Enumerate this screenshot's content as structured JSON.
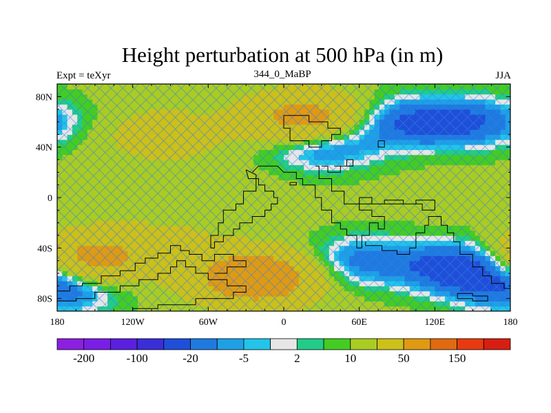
{
  "chart_data": {
    "type": "heatmap",
    "title": "Height perturbation at 500 hPa (in m)",
    "left_string": "Expt = teXyr",
    "center_string": "344_0_MaBP",
    "right_string": "JJA",
    "x_ticks": [
      "180",
      "120W",
      "60W",
      "0",
      "60E",
      "120E",
      "180"
    ],
    "x_tick_values": [
      -180,
      -120,
      -60,
      0,
      60,
      120,
      180
    ],
    "y_ticks": [
      "80N",
      "40N",
      "0",
      "40S",
      "80S"
    ],
    "y_tick_values": [
      80,
      40,
      0,
      -40,
      -80
    ],
    "xlim": [
      -180,
      180
    ],
    "ylim": [
      -90,
      90
    ],
    "colorbar": {
      "colors": [
        "#8c1fe0",
        "#7a1ee6",
        "#5b1fe0",
        "#3a2ed8",
        "#1f4fd8",
        "#1f7ae0",
        "#1ea0e6",
        "#22c4e8",
        "#e6e6e6",
        "#22cc88",
        "#44cc22",
        "#aacc22",
        "#ccc019",
        "#e09a12",
        "#e06a10",
        "#e83a10",
        "#d81e10"
      ],
      "labels": [
        "-200",
        "-100",
        "-20",
        "-5",
        "2",
        "10",
        "50",
        "150"
      ],
      "label_boundaries": [
        1,
        3,
        5,
        7,
        9,
        11,
        13,
        15
      ]
    },
    "field_features": [
      {
        "lon": 18,
        "lat": 62,
        "value": 60
      },
      {
        "lon": -22,
        "lat": -63,
        "value": 80
      },
      {
        "lon": -152,
        "lat": -48,
        "value": 55
      },
      {
        "lon": -95,
        "lat": 50,
        "value": 20
      },
      {
        "lon": 30,
        "lat": 42,
        "value": -30
      },
      {
        "lon": 95,
        "lat": 60,
        "value": -30
      },
      {
        "lon": 150,
        "lat": 60,
        "value": -30
      },
      {
        "lon": 60,
        "lat": -50,
        "value": -25
      },
      {
        "lon": 140,
        "lat": -55,
        "value": -45
      },
      {
        "lon": -175,
        "lat": -72,
        "value": -30
      },
      {
        "lon": -90,
        "lat": -35,
        "value": 10
      },
      {
        "lon": -60,
        "lat": 5,
        "value": 5
      }
    ],
    "coastlines": [
      [
        [
          -30,
          22
        ],
        [
          -28,
          15
        ],
        [
          -20,
          15
        ],
        [
          -20,
          10
        ],
        [
          -15,
          10
        ],
        [
          -15,
          5
        ],
        [
          -8,
          5
        ],
        [
          -8,
          0
        ],
        [
          -5,
          0
        ],
        [
          -5,
          -5
        ],
        [
          -10,
          -5
        ],
        [
          -10,
          -10
        ],
        [
          -15,
          -10
        ],
        [
          -15,
          -15
        ],
        [
          -25,
          -15
        ],
        [
          -25,
          -20
        ],
        [
          -35,
          -20
        ],
        [
          -35,
          -25
        ],
        [
          -40,
          -25
        ],
        [
          -40,
          -30
        ],
        [
          -48,
          -30
        ],
        [
          -48,
          -35
        ],
        [
          -55,
          -35
        ],
        [
          -55,
          -40
        ],
        [
          -58,
          -40
        ],
        [
          -58,
          -30
        ],
        [
          -52,
          -30
        ],
        [
          -52,
          -20
        ],
        [
          -48,
          -20
        ],
        [
          -48,
          -10
        ],
        [
          -38,
          -10
        ],
        [
          -38,
          -5
        ],
        [
          -32,
          -5
        ],
        [
          -32,
          5
        ],
        [
          -22,
          5
        ],
        [
          -22,
          18
        ],
        [
          -30,
          22
        ]
      ],
      [
        [
          -25,
          20
        ],
        [
          -20,
          25
        ],
        [
          -5,
          25
        ],
        [
          0,
          20
        ],
        [
          10,
          20
        ],
        [
          10,
          15
        ],
        [
          15,
          15
        ],
        [
          15,
          10
        ],
        [
          25,
          10
        ],
        [
          25,
          0
        ],
        [
          30,
          0
        ],
        [
          30,
          -10
        ],
        [
          38,
          -10
        ],
        [
          38,
          -20
        ],
        [
          45,
          -20
        ],
        [
          45,
          -25
        ],
        [
          50,
          -25
        ],
        [
          50,
          -30
        ],
        [
          58,
          -30
        ],
        [
          58,
          -40
        ],
        [
          62,
          -40
        ],
        [
          62,
          -30
        ],
        [
          68,
          -30
        ],
        [
          68,
          -20
        ],
        [
          75,
          -20
        ],
        [
          75,
          -25
        ],
        [
          80,
          -25
        ],
        [
          80,
          -15
        ],
        [
          70,
          -15
        ],
        [
          70,
          -10
        ],
        [
          60,
          -10
        ],
        [
          60,
          -5
        ],
        [
          48,
          -5
        ],
        [
          48,
          5
        ],
        [
          38,
          5
        ],
        [
          38,
          15
        ],
        [
          28,
          15
        ],
        [
          28,
          25
        ],
        [
          25,
          25
        ]
      ],
      [
        [
          30,
          25
        ],
        [
          35,
          25
        ],
        [
          35,
          20
        ],
        [
          45,
          20
        ],
        [
          45,
          25
        ],
        [
          55,
          25
        ],
        [
          55,
          30
        ],
        [
          50,
          30
        ],
        [
          50,
          25
        ],
        [
          40,
          25
        ]
      ],
      [
        [
          5,
          12
        ],
        [
          10,
          12
        ],
        [
          10,
          10
        ],
        [
          5,
          10
        ],
        [
          5,
          12
        ]
      ],
      [
        [
          60,
          0
        ],
        [
          70,
          0
        ],
        [
          70,
          -5
        ],
        [
          80,
          -5
        ],
        [
          80,
          -2
        ],
        [
          95,
          -2
        ],
        [
          95,
          -5
        ],
        [
          105,
          -5
        ],
        [
          105,
          -2
        ],
        [
          120,
          -2
        ],
        [
          120,
          -10
        ],
        [
          110,
          -10
        ],
        [
          110,
          -5
        ],
        [
          60,
          -5
        ],
        [
          60,
          0
        ]
      ],
      [
        [
          0,
          65
        ],
        [
          20,
          65
        ],
        [
          20,
          60
        ],
        [
          35,
          60
        ],
        [
          35,
          55
        ],
        [
          45,
          55
        ],
        [
          45,
          50
        ],
        [
          38,
          50
        ],
        [
          38,
          45
        ],
        [
          30,
          45
        ],
        [
          30,
          40
        ],
        [
          20,
          40
        ],
        [
          20,
          45
        ],
        [
          5,
          45
        ],
        [
          5,
          55
        ],
        [
          0,
          55
        ],
        [
          0,
          65
        ]
      ],
      [
        [
          75,
          45
        ],
        [
          80,
          45
        ],
        [
          80,
          40
        ],
        [
          75,
          40
        ],
        [
          75,
          45
        ]
      ],
      [
        [
          -120,
          -90
        ],
        [
          -120,
          -88
        ],
        [
          -100,
          -88
        ],
        [
          -100,
          -85
        ],
        [
          -70,
          -85
        ],
        [
          -70,
          -80
        ],
        [
          -40,
          -80
        ],
        [
          -40,
          -75
        ],
        [
          -30,
          -75
        ],
        [
          -30,
          -70
        ],
        [
          -45,
          -70
        ],
        [
          -45,
          -65
        ],
        [
          -60,
          -65
        ],
        [
          -60,
          -60
        ],
        [
          -70,
          -60
        ],
        [
          -70,
          -55
        ],
        [
          -78,
          -55
        ],
        [
          -78,
          -50
        ],
        [
          -85,
          -50
        ],
        [
          -85,
          -55
        ],
        [
          -90,
          -55
        ],
        [
          -90,
          -60
        ],
        [
          -100,
          -60
        ],
        [
          -100,
          -65
        ],
        [
          -115,
          -65
        ],
        [
          -115,
          -70
        ],
        [
          -130,
          -70
        ],
        [
          -130,
          -75
        ],
        [
          -150,
          -75
        ],
        [
          -150,
          -80
        ],
        [
          -165,
          -80
        ],
        [
          -165,
          -82
        ],
        [
          -180,
          -82
        ]
      ],
      [
        [
          -180,
          -74
        ],
        [
          -170,
          -74
        ],
        [
          -170,
          -70
        ],
        [
          -160,
          -70
        ],
        [
          -160,
          -68
        ],
        [
          -145,
          -68
        ],
        [
          -145,
          -62
        ],
        [
          -130,
          -62
        ],
        [
          -130,
          -58
        ],
        [
          -118,
          -58
        ],
        [
          -118,
          -52
        ],
        [
          -110,
          -52
        ],
        [
          -110,
          -48
        ],
        [
          -100,
          -48
        ],
        [
          -100,
          -44
        ],
        [
          -90,
          -44
        ],
        [
          -90,
          -38
        ],
        [
          -82,
          -38
        ],
        [
          -82,
          -42
        ],
        [
          -75,
          -42
        ],
        [
          -75,
          -45
        ],
        [
          -65,
          -45
        ],
        [
          -65,
          -50
        ],
        [
          -55,
          -50
        ],
        [
          -55,
          -45
        ],
        [
          -40,
          -45
        ],
        [
          -40,
          -50
        ],
        [
          -30,
          -50
        ],
        [
          -30,
          -55
        ],
        [
          -45,
          -55
        ],
        [
          -45,
          -60
        ],
        [
          -55,
          -60
        ]
      ],
      [
        [
          120,
          -15
        ],
        [
          125,
          -15
        ],
        [
          125,
          -22
        ],
        [
          130,
          -22
        ],
        [
          130,
          -28
        ],
        [
          135,
          -28
        ],
        [
          135,
          -35
        ],
        [
          140,
          -35
        ],
        [
          140,
          -45
        ],
        [
          150,
          -45
        ],
        [
          150,
          -55
        ],
        [
          158,
          -55
        ],
        [
          158,
          -62
        ],
        [
          165,
          -62
        ],
        [
          165,
          -68
        ],
        [
          175,
          -68
        ],
        [
          175,
          -72
        ],
        [
          180,
          -72
        ]
      ],
      [
        [
          120,
          -15
        ],
        [
          115,
          -15
        ],
        [
          115,
          -22
        ],
        [
          112,
          -22
        ],
        [
          112,
          -28
        ],
        [
          105,
          -28
        ],
        [
          105,
          -40
        ],
        [
          100,
          -40
        ],
        [
          100,
          -45
        ],
        [
          90,
          -45
        ],
        [
          90,
          -42
        ],
        [
          78,
          -42
        ],
        [
          78,
          -38
        ],
        [
          65,
          -38
        ],
        [
          65,
          -35
        ]
      ],
      [
        [
          138,
          -80
        ],
        [
          150,
          -80
        ],
        [
          150,
          -82
        ],
        [
          162,
          -82
        ],
        [
          162,
          -78
        ],
        [
          150,
          -78
        ],
        [
          150,
          -76
        ],
        [
          138,
          -76
        ],
        [
          138,
          -80
        ]
      ]
    ]
  }
}
